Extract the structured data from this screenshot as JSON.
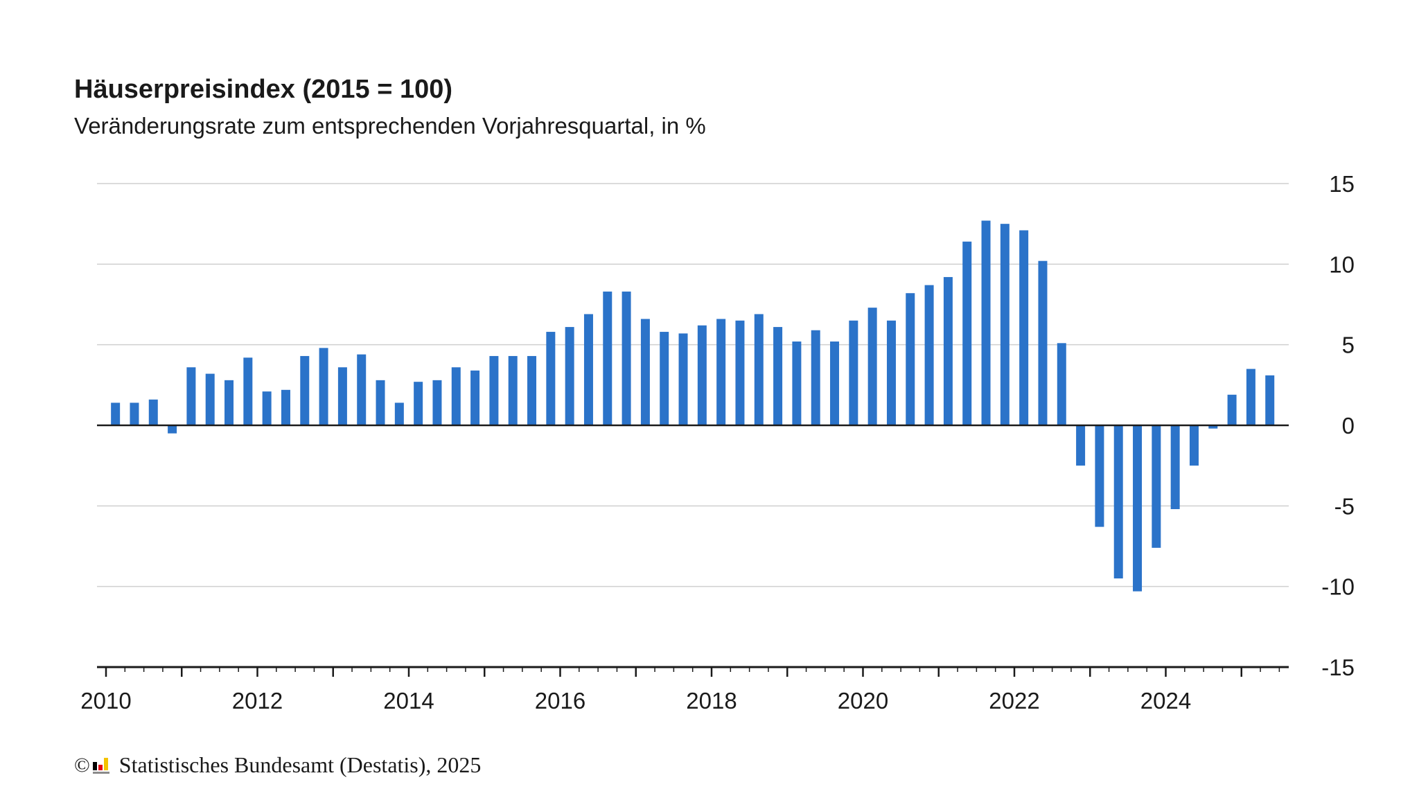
{
  "chart_data": {
    "type": "bar",
    "title": "Häuserpreisindex (2015 = 100)",
    "subtitle": "Veränderungsrate zum entsprechenden Vorjahresquartal, in %",
    "x_tick_labels": [
      "2010",
      "2012",
      "2014",
      "2016",
      "2018",
      "2020",
      "2022",
      "2024"
    ],
    "y_tick_labels": [
      "15",
      "10",
      "5",
      "0",
      "-5",
      "-10",
      "-15"
    ],
    "ylim": [
      -15,
      15
    ],
    "y_axis_position": "right",
    "grid": true,
    "bar_color": "#2b73c9",
    "series": [
      {
        "x": [
          "2010 Q1",
          "2010 Q2",
          "2010 Q3",
          "2010 Q4",
          "2011 Q1",
          "2011 Q2",
          "2011 Q3",
          "2011 Q4",
          "2012 Q1",
          "2012 Q2",
          "2012 Q3",
          "2012 Q4",
          "2013 Q1",
          "2013 Q2",
          "2013 Q3",
          "2013 Q4",
          "2014 Q1",
          "2014 Q2",
          "2014 Q3",
          "2014 Q4",
          "2015 Q1",
          "2015 Q2",
          "2015 Q3",
          "2015 Q4",
          "2016 Q1",
          "2016 Q2",
          "2016 Q3",
          "2016 Q4",
          "2017 Q1",
          "2017 Q2",
          "2017 Q3",
          "2017 Q4",
          "2018 Q1",
          "2018 Q2",
          "2018 Q3",
          "2018 Q4",
          "2019 Q1",
          "2019 Q2",
          "2019 Q3",
          "2019 Q4",
          "2020 Q1",
          "2020 Q2",
          "2020 Q3",
          "2020 Q4",
          "2021 Q1",
          "2021 Q2",
          "2021 Q3",
          "2021 Q4",
          "2022 Q1",
          "2022 Q2",
          "2022 Q3",
          "2022 Q4",
          "2023 Q1",
          "2023 Q2",
          "2023 Q3",
          "2023 Q4",
          "2024 Q1",
          "2024 Q2",
          "2024 Q3",
          "2024 Q4",
          "2025 Q1",
          "2025 Q2"
        ],
        "values": [
          1.4,
          1.4,
          1.6,
          -0.5,
          3.6,
          3.2,
          2.8,
          4.2,
          2.1,
          2.2,
          4.3,
          4.8,
          3.6,
          4.4,
          2.8,
          1.4,
          2.7,
          2.8,
          3.6,
          3.4,
          4.3,
          4.3,
          4.3,
          5.8,
          6.1,
          6.9,
          8.3,
          8.3,
          6.6,
          5.8,
          5.7,
          6.2,
          6.6,
          6.5,
          6.9,
          6.1,
          5.2,
          5.9,
          5.2,
          6.5,
          7.3,
          6.5,
          8.2,
          8.7,
          9.2,
          11.4,
          12.7,
          12.5,
          12.1,
          10.2,
          5.1,
          -2.5,
          -6.3,
          -9.5,
          -10.3,
          -7.6,
          -5.2,
          -2.5,
          -0.2,
          1.9,
          3.5,
          3.1
        ]
      }
    ]
  },
  "footer": {
    "copyright_symbol": "©",
    "source_text": "Statistisches Bundesamt (Destatis), 2025"
  }
}
